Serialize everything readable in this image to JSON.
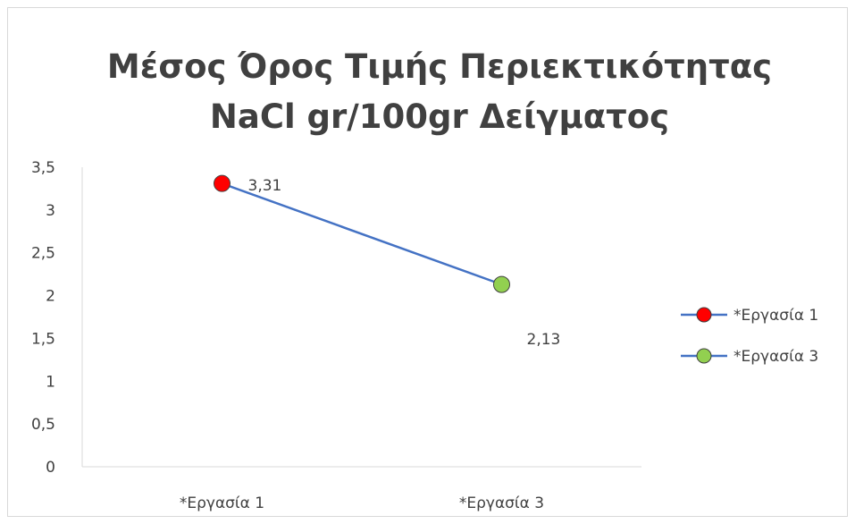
{
  "chart_data": {
    "type": "line",
    "title_lines": [
      "Μέσος Όρος Τιμής Περιεκτικότητας",
      "NaCl gr/100gr Δείγματος"
    ],
    "categories": [
      "*Εργασία 1",
      "*Εργασία 3"
    ],
    "values": [
      3.31,
      2.13
    ],
    "data_labels": [
      "3,31",
      "2,13"
    ],
    "yticks": [
      "0",
      "0,5",
      "1",
      "1,5",
      "2",
      "2,5",
      "3",
      "3,5"
    ],
    "ylim": [
      0,
      3.5
    ],
    "line_color": "#4472c4",
    "point_colors": [
      "#ff0000",
      "#92d050"
    ],
    "legend": {
      "position": "right",
      "entries": [
        {
          "label": "*Εργασία 1",
          "color": "#ff0000"
        },
        {
          "label": "*Εργασία 3",
          "color": "#92d050"
        }
      ]
    },
    "grid": false
  }
}
